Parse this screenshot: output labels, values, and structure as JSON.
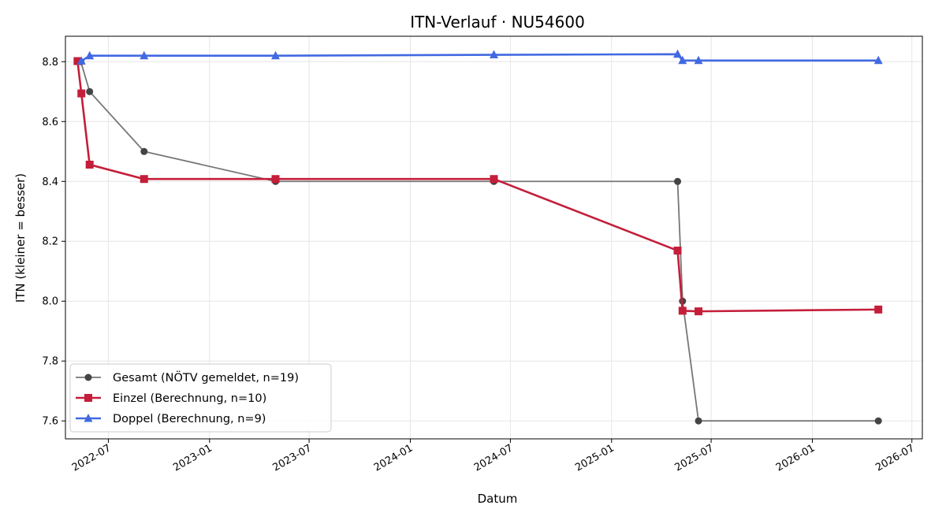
{
  "chart_data": {
    "type": "line",
    "title": "ITN-Verlauf · NU54600",
    "xlabel": "Datum",
    "ylabel": "ITN  (kleiner = besser)",
    "x_type": "date",
    "xlim": [
      "2022-04-14",
      "2026-07-20"
    ],
    "ylim": [
      7.54,
      8.885
    ],
    "grid": true,
    "legend_position": "lower-left",
    "x_ticks": [
      {
        "value": "2022-07-01",
        "label": "2022-07"
      },
      {
        "value": "2023-01-01",
        "label": "2023-01"
      },
      {
        "value": "2023-07-01",
        "label": "2023-07"
      },
      {
        "value": "2024-01-01",
        "label": "2024-01"
      },
      {
        "value": "2024-07-01",
        "label": "2024-07"
      },
      {
        "value": "2025-01-01",
        "label": "2025-01"
      },
      {
        "value": "2025-07-01",
        "label": "2025-07"
      },
      {
        "value": "2026-01-01",
        "label": "2026-01"
      },
      {
        "value": "2026-07-01",
        "label": "2026-07"
      }
    ],
    "y_ticks": [
      7.6,
      7.8,
      8.0,
      8.2,
      8.4,
      8.6,
      8.8
    ],
    "y_tick_labels": [
      "7.6",
      "7.8",
      "8.0",
      "8.2",
      "8.4",
      "8.6",
      "8.8"
    ],
    "series": [
      {
        "name": "Gesamt (NÖTV gemeldet, n=19)",
        "color": "#555555",
        "marker": "circle",
        "points": [
          [
            "2022-05-12",
            8.8
          ],
          [
            "2022-05-28",
            8.7
          ],
          [
            "2022-09-04",
            8.5
          ],
          [
            "2023-05-01",
            8.4
          ],
          [
            "2024-06-01",
            8.4
          ],
          [
            "2025-05-01",
            8.4
          ],
          [
            "2025-05-10",
            8.0
          ],
          [
            "2025-06-08",
            7.6
          ],
          [
            "2026-05-01",
            7.6
          ]
        ]
      },
      {
        "name": "Einzel (Berechnung, n=10)",
        "color": "#c41e3a",
        "marker": "square",
        "points": [
          [
            "2022-05-06",
            8.802
          ],
          [
            "2022-05-13",
            8.694
          ],
          [
            "2022-05-28",
            8.456
          ],
          [
            "2022-09-04",
            8.408
          ],
          [
            "2023-05-01",
            8.408
          ],
          [
            "2024-06-01",
            8.408
          ],
          [
            "2025-05-01",
            8.169
          ],
          [
            "2025-05-10",
            7.968
          ],
          [
            "2025-06-08",
            7.966
          ],
          [
            "2026-05-01",
            7.972
          ]
        ]
      },
      {
        "name": "Doppel (Berechnung, n=9)",
        "color": "#4169e1",
        "marker": "triangle",
        "points": [
          [
            "2022-05-13",
            8.802
          ],
          [
            "2022-05-28",
            8.82
          ],
          [
            "2022-09-04",
            8.82
          ],
          [
            "2023-05-01",
            8.82
          ],
          [
            "2024-06-01",
            8.823
          ],
          [
            "2025-05-01",
            8.825
          ],
          [
            "2025-05-10",
            8.804
          ],
          [
            "2025-06-08",
            8.804
          ],
          [
            "2026-05-01",
            8.804
          ]
        ]
      }
    ]
  }
}
